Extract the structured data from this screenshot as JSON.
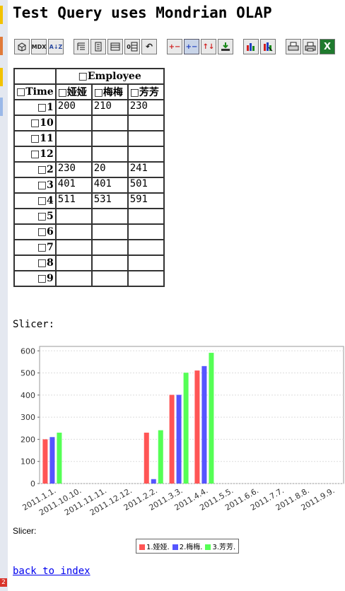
{
  "page": {
    "title": "Test Query uses Mondrian OLAP"
  },
  "toolbar": {
    "buttons": [
      {
        "name": "cube-navigator",
        "label": ""
      },
      {
        "name": "mdx-editor",
        "label": "MDX"
      },
      {
        "name": "sort",
        "label": "A↓Z"
      },
      {
        "name": "show-parent-members",
        "label": ""
      },
      {
        "name": "hide-spans",
        "label": ""
      },
      {
        "name": "show-properties",
        "label": ""
      },
      {
        "name": "suppress-empty",
        "label": "0"
      },
      {
        "name": "swap-axes",
        "label": "↶"
      },
      {
        "name": "drill-member",
        "label": "+−"
      },
      {
        "name": "drill-position",
        "label": "+−"
      },
      {
        "name": "drill-replace",
        "label": "↑↓"
      },
      {
        "name": "drill-through",
        "label": ""
      },
      {
        "name": "show-chart",
        "label": ""
      },
      {
        "name": "chart-config",
        "label": ""
      },
      {
        "name": "print-config",
        "label": ""
      },
      {
        "name": "print-pdf",
        "label": ""
      },
      {
        "name": "excel-export",
        "label": "X"
      }
    ]
  },
  "table": {
    "column_dimension": "□Employee",
    "row_dimension": "□Time",
    "columns": [
      "□娅娅",
      "□梅梅",
      "□芳芳"
    ],
    "rows": [
      {
        "label": "□1",
        "values": [
          "200",
          "210",
          "230"
        ]
      },
      {
        "label": "□10",
        "values": [
          "",
          "",
          ""
        ]
      },
      {
        "label": "□11",
        "values": [
          "",
          "",
          ""
        ]
      },
      {
        "label": "□12",
        "values": [
          "",
          "",
          ""
        ]
      },
      {
        "label": "□2",
        "values": [
          "230",
          "20",
          "241"
        ]
      },
      {
        "label": "□3",
        "values": [
          "401",
          "401",
          "501"
        ]
      },
      {
        "label": "□4",
        "values": [
          "511",
          "531",
          "591"
        ]
      },
      {
        "label": "□5",
        "values": [
          "",
          "",
          ""
        ]
      },
      {
        "label": "□6",
        "values": [
          "",
          "",
          ""
        ]
      },
      {
        "label": "□7",
        "values": [
          "",
          "",
          ""
        ]
      },
      {
        "label": "□8",
        "values": [
          "",
          "",
          ""
        ]
      },
      {
        "label": "□9",
        "values": [
          "",
          "",
          ""
        ]
      }
    ]
  },
  "slicer_label_top": "Slicer:",
  "slicer_label_bottom": "Slicer:",
  "chart_data": {
    "type": "bar",
    "categories": [
      "2011.1.1.",
      "2011.10.10.",
      "2011.11.11.",
      "2011.12.12.",
      "2011.2.2.",
      "2011.3.3.",
      "2011.4.4.",
      "2011.5.5.",
      "2011.6.6.",
      "2011.7.7.",
      "2011.8.8.",
      "2011.9.9."
    ],
    "series": [
      {
        "name": "1.娅娅.",
        "color": "#ff5555",
        "values": [
          200,
          null,
          null,
          null,
          230,
          401,
          511,
          null,
          null,
          null,
          null,
          null
        ]
      },
      {
        "name": "2.梅梅.",
        "color": "#5555ff",
        "values": [
          210,
          null,
          null,
          null,
          20,
          401,
          531,
          null,
          null,
          null,
          null,
          null
        ]
      },
      {
        "name": "3.芳芳.",
        "color": "#55ff55",
        "values": [
          230,
          null,
          null,
          null,
          241,
          501,
          591,
          null,
          null,
          null,
          null,
          null
        ]
      }
    ],
    "yticks": [
      0,
      100,
      200,
      300,
      400,
      500,
      600
    ],
    "ylim": [
      0,
      620
    ],
    "grid": true,
    "legend": "bottom-center"
  },
  "back_link": "back to index",
  "gutter_badge": "2"
}
